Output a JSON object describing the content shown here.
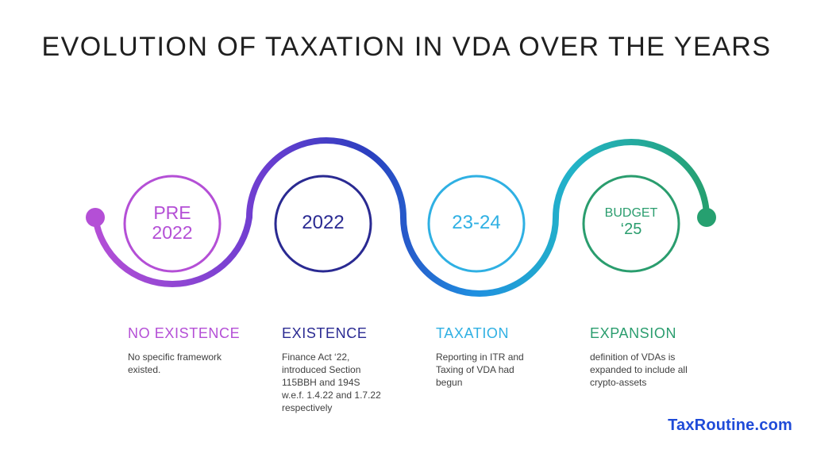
{
  "title": "EVOLUTION OF TAXATION IN VDA OVER THE YEARS",
  "brand": "TaxRoutine.com",
  "colors": {
    "stage1": "#b44fd6",
    "stage2": "#2a2a92",
    "stage3": "#2fb0e3",
    "stage4": "#2a9d6e",
    "endDotLeft": "#b44fd6",
    "endDotRight": "#26a070",
    "brand": "#1f4bd8"
  },
  "stages": [
    {
      "circle_lines": [
        "PRE",
        "2022"
      ],
      "phase": "NO EXISTENCE",
      "description": [
        "No specific framework",
        "existed."
      ]
    },
    {
      "circle_lines": [
        "2022"
      ],
      "phase": "EXISTENCE",
      "description": [
        "Finance Act ‘22,",
        "introduced Section",
        "115BBH and 194S",
        "w.e.f. 1.4.22 and 1.7.22",
        "respectively"
      ]
    },
    {
      "circle_lines": [
        "23-24"
      ],
      "phase": "TAXATION",
      "description": [
        "Reporting in ITR and",
        "Taxing of VDA had",
        "begun"
      ]
    },
    {
      "circle_lines": [
        "BUDGET",
        "‘25"
      ],
      "phase": "EXPANSION",
      "description": [
        "definition of VDAs is",
        "expanded to include all",
        "crypto-assets"
      ]
    }
  ]
}
